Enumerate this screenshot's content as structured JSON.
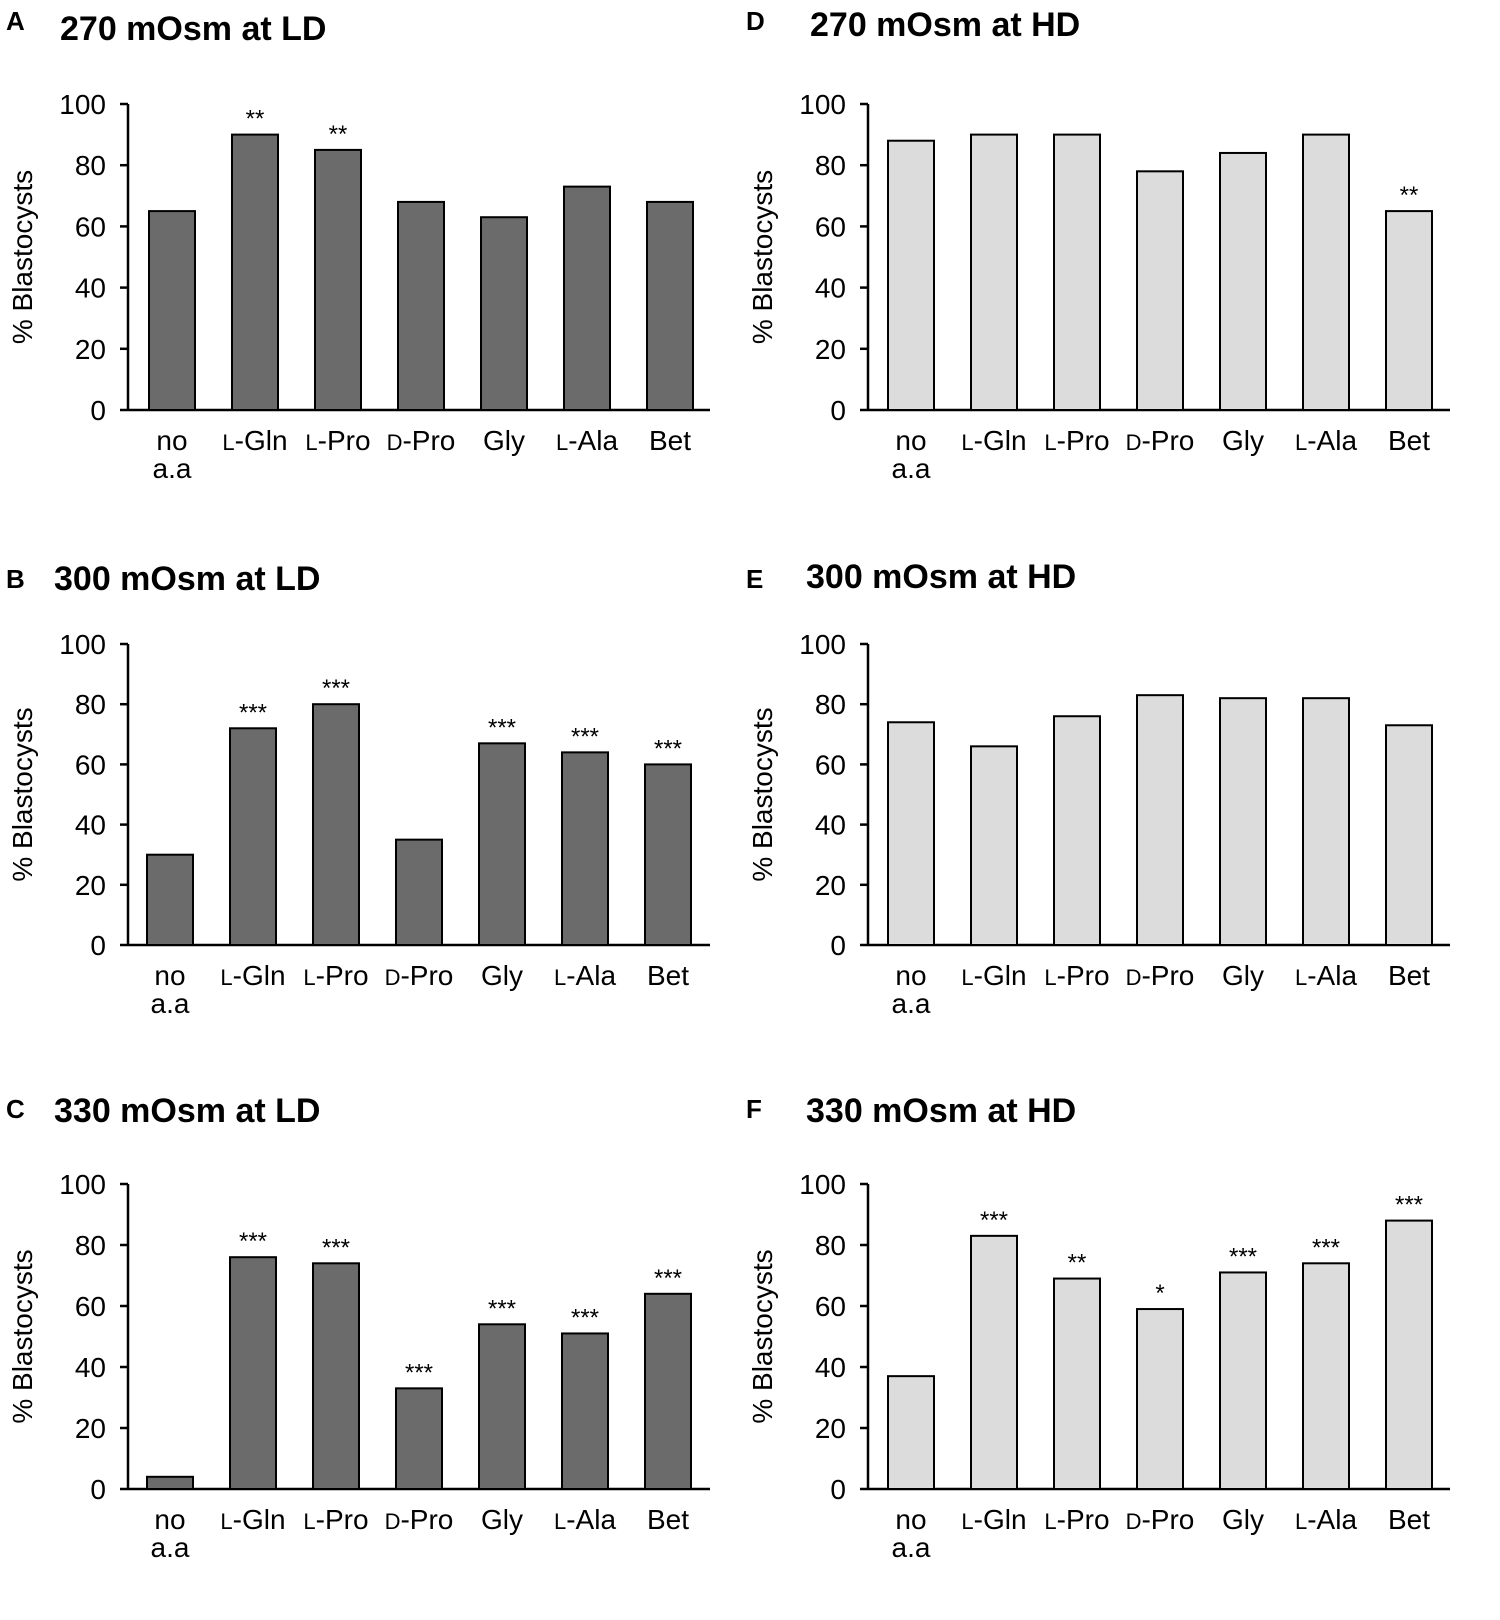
{
  "colors": {
    "ld_bar": "#6b6b6b",
    "hd_bar": "#dcdcdc",
    "axis": "#000000"
  },
  "chart_data": [
    {
      "type": "bar",
      "panel": "A",
      "title": "270 mOsm at LD",
      "ylabel": "% Blastocysts",
      "ylim": [
        0,
        100
      ],
      "yticks": [
        "0",
        "20",
        "40",
        "60",
        "80",
        "100"
      ],
      "categories": [
        "no a.a",
        "L-Gln",
        "L-Pro",
        "D-Pro",
        "Gly",
        "L-Ala",
        "Bet"
      ],
      "values": [
        65,
        90,
        85,
        68,
        63,
        73,
        68
      ],
      "significance": [
        "",
        "**",
        "**",
        "",
        "",
        "",
        ""
      ]
    },
    {
      "type": "bar",
      "panel": "B",
      "title": "300 mOsm at LD",
      "ylabel": "% Blastocysts",
      "ylim": [
        0,
        100
      ],
      "yticks": [
        "0",
        "20",
        "40",
        "60",
        "80",
        "100"
      ],
      "categories": [
        "no a.a",
        "L-Gln",
        "L-Pro",
        "D-Pro",
        "Gly",
        "L-Ala",
        "Bet"
      ],
      "values": [
        30,
        72,
        80,
        35,
        67,
        64,
        60
      ],
      "significance": [
        "",
        "***",
        "***",
        "",
        "***",
        "***",
        "***"
      ]
    },
    {
      "type": "bar",
      "panel": "C",
      "title": "330 mOsm at LD",
      "ylabel": "% Blastocysts",
      "ylim": [
        0,
        100
      ],
      "yticks": [
        "0",
        "20",
        "40",
        "60",
        "80",
        "100"
      ],
      "categories": [
        "no a.a",
        "L-Gln",
        "L-Pro",
        "D-Pro",
        "Gly",
        "L-Ala",
        "Bet"
      ],
      "values": [
        4,
        76,
        74,
        33,
        54,
        51,
        64
      ],
      "significance": [
        "",
        "***",
        "***",
        "***",
        "***",
        "***",
        "***"
      ]
    },
    {
      "type": "bar",
      "panel": "D",
      "title": "270 mOsm at HD",
      "ylabel": "% Blastocysts",
      "ylim": [
        0,
        100
      ],
      "yticks": [
        "0",
        "20",
        "40",
        "60",
        "80",
        "100"
      ],
      "categories": [
        "no a.a",
        "L-Gln",
        "L-Pro",
        "D-Pro",
        "Gly",
        "L-Ala",
        "Bet"
      ],
      "values": [
        88,
        90,
        90,
        78,
        84,
        90,
        65
      ],
      "significance": [
        "",
        "",
        "",
        "",
        "",
        "",
        "**"
      ]
    },
    {
      "type": "bar",
      "panel": "E",
      "title": "300 mOsm at HD",
      "ylabel": "% Blastocysts",
      "ylim": [
        0,
        100
      ],
      "yticks": [
        "0",
        "20",
        "40",
        "60",
        "80",
        "100"
      ],
      "categories": [
        "no a.a",
        "L-Gln",
        "L-Pro",
        "D-Pro",
        "Gly",
        "L-Ala",
        "Bet"
      ],
      "values": [
        74,
        66,
        76,
        83,
        82,
        82,
        73
      ],
      "significance": [
        "",
        "",
        "",
        "",
        "",
        "",
        ""
      ]
    },
    {
      "type": "bar",
      "panel": "F",
      "title": "330 mOsm at HD",
      "ylabel": "% Blastocysts",
      "ylim": [
        0,
        100
      ],
      "yticks": [
        "0",
        "20",
        "40",
        "60",
        "80",
        "100"
      ],
      "categories": [
        "no a.a",
        "L-Gln",
        "L-Pro",
        "D-Pro",
        "Gly",
        "L-Ala",
        "Bet"
      ],
      "values": [
        37,
        83,
        69,
        59,
        71,
        74,
        88
      ],
      "significance": [
        "",
        "***",
        "**",
        "*",
        "***",
        "***",
        "***"
      ]
    }
  ]
}
